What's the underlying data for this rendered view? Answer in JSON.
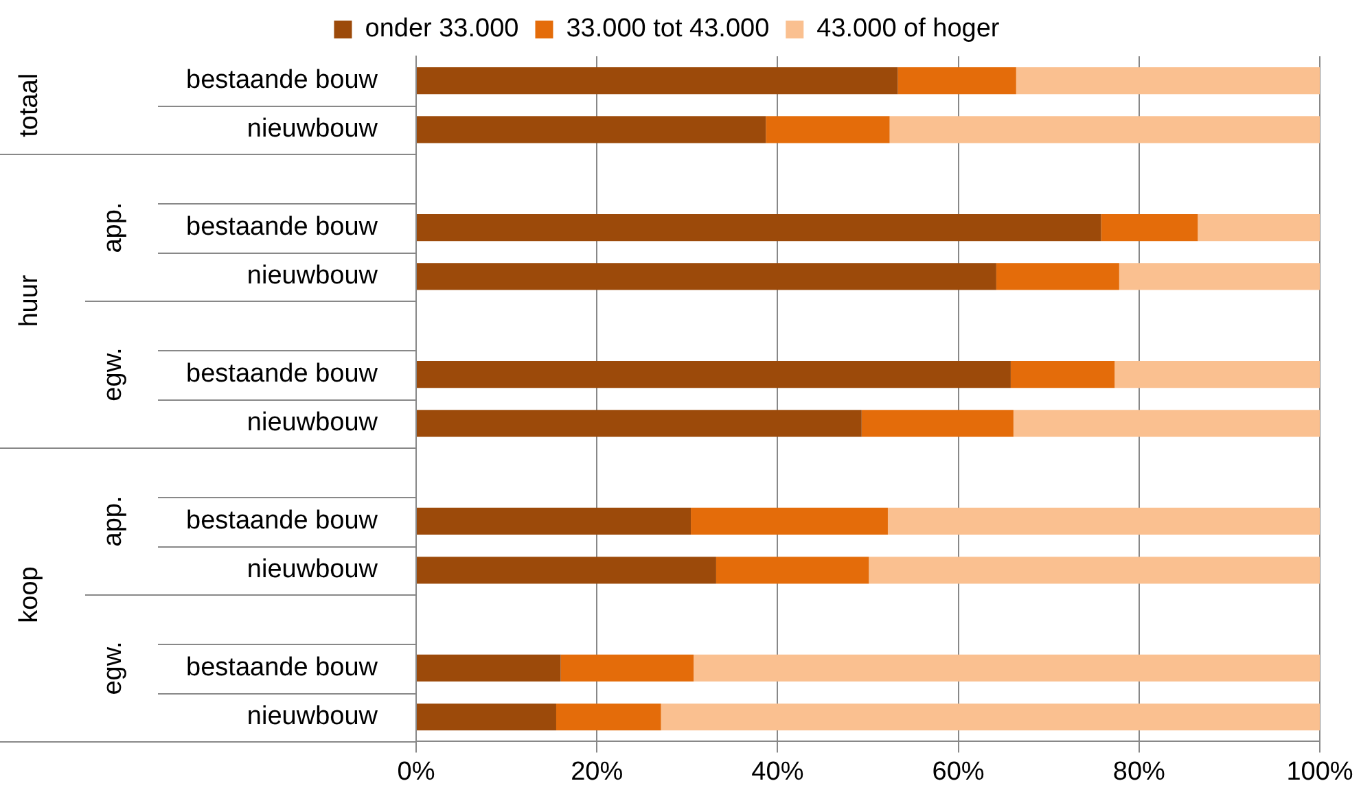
{
  "chart_data": {
    "type": "bar",
    "orientation": "horizontal",
    "stacked": true,
    "categories": [
      "bestaande bouw",
      "nieuwbouw",
      null,
      "bestaande bouw",
      "nieuwbouw",
      null,
      "bestaande bouw",
      "nieuwbouw",
      null,
      "bestaande bouw",
      "nieuwbouw",
      null,
      "bestaande bouw",
      "nieuwbouw"
    ],
    "series": [
      {
        "name": "onder 33.000",
        "color": "#9c4a0a",
        "values": [
          53.3,
          38.7,
          null,
          75.8,
          64.2,
          null,
          65.8,
          49.3,
          null,
          30.4,
          33.2,
          null,
          16.0,
          15.5
        ]
      },
      {
        "name": "33.000 tot 43.000",
        "color": "#e46c0a",
        "values": [
          13.1,
          13.7,
          null,
          10.7,
          13.6,
          null,
          11.5,
          16.8,
          null,
          21.8,
          16.9,
          null,
          14.7,
          11.6
        ]
      },
      {
        "name": "43.000 of hoger",
        "color": "#fac090",
        "values": [
          33.6,
          47.6,
          null,
          13.5,
          22.2,
          null,
          22.7,
          33.9,
          null,
          47.8,
          49.9,
          null,
          69.3,
          72.9
        ]
      }
    ],
    "xlim": [
      0,
      100
    ],
    "xticks": [
      {
        "value": 0,
        "label": "0%"
      },
      {
        "value": 20,
        "label": "20%"
      },
      {
        "value": 40,
        "label": "40%"
      },
      {
        "value": 60,
        "label": "60%"
      },
      {
        "value": 80,
        "label": "80%"
      },
      {
        "value": 100,
        "label": "100%"
      }
    ],
    "grid": "x",
    "legend": "top",
    "annotations": [
      "totaal",
      "huur",
      "koop",
      "app.",
      "egw.",
      "app.",
      "egw."
    ]
  }
}
